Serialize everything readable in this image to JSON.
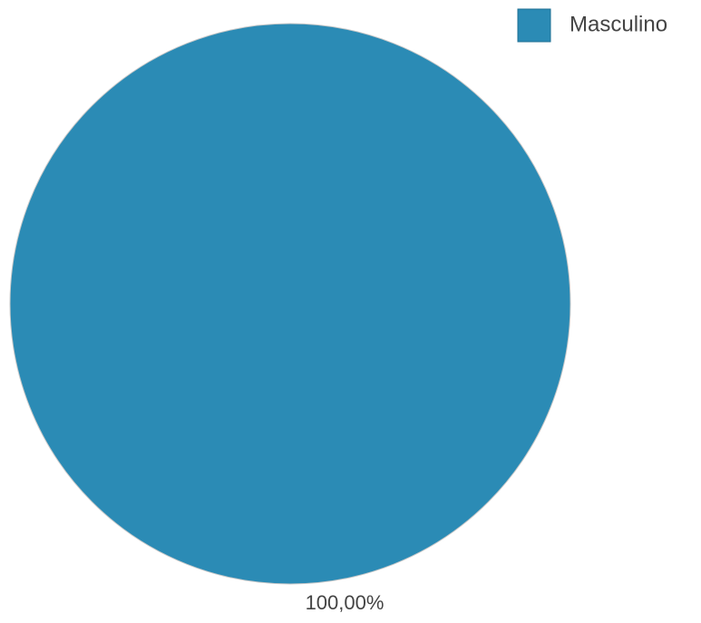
{
  "chart_data": {
    "type": "pie",
    "title": "",
    "categories": [
      "Masculino"
    ],
    "values": [
      100
    ],
    "colors": [
      "#2b8bb5"
    ],
    "data_labels": [
      "100,00%"
    ],
    "legend": {
      "placement": "top-right",
      "entries": [
        "Masculino"
      ]
    }
  }
}
